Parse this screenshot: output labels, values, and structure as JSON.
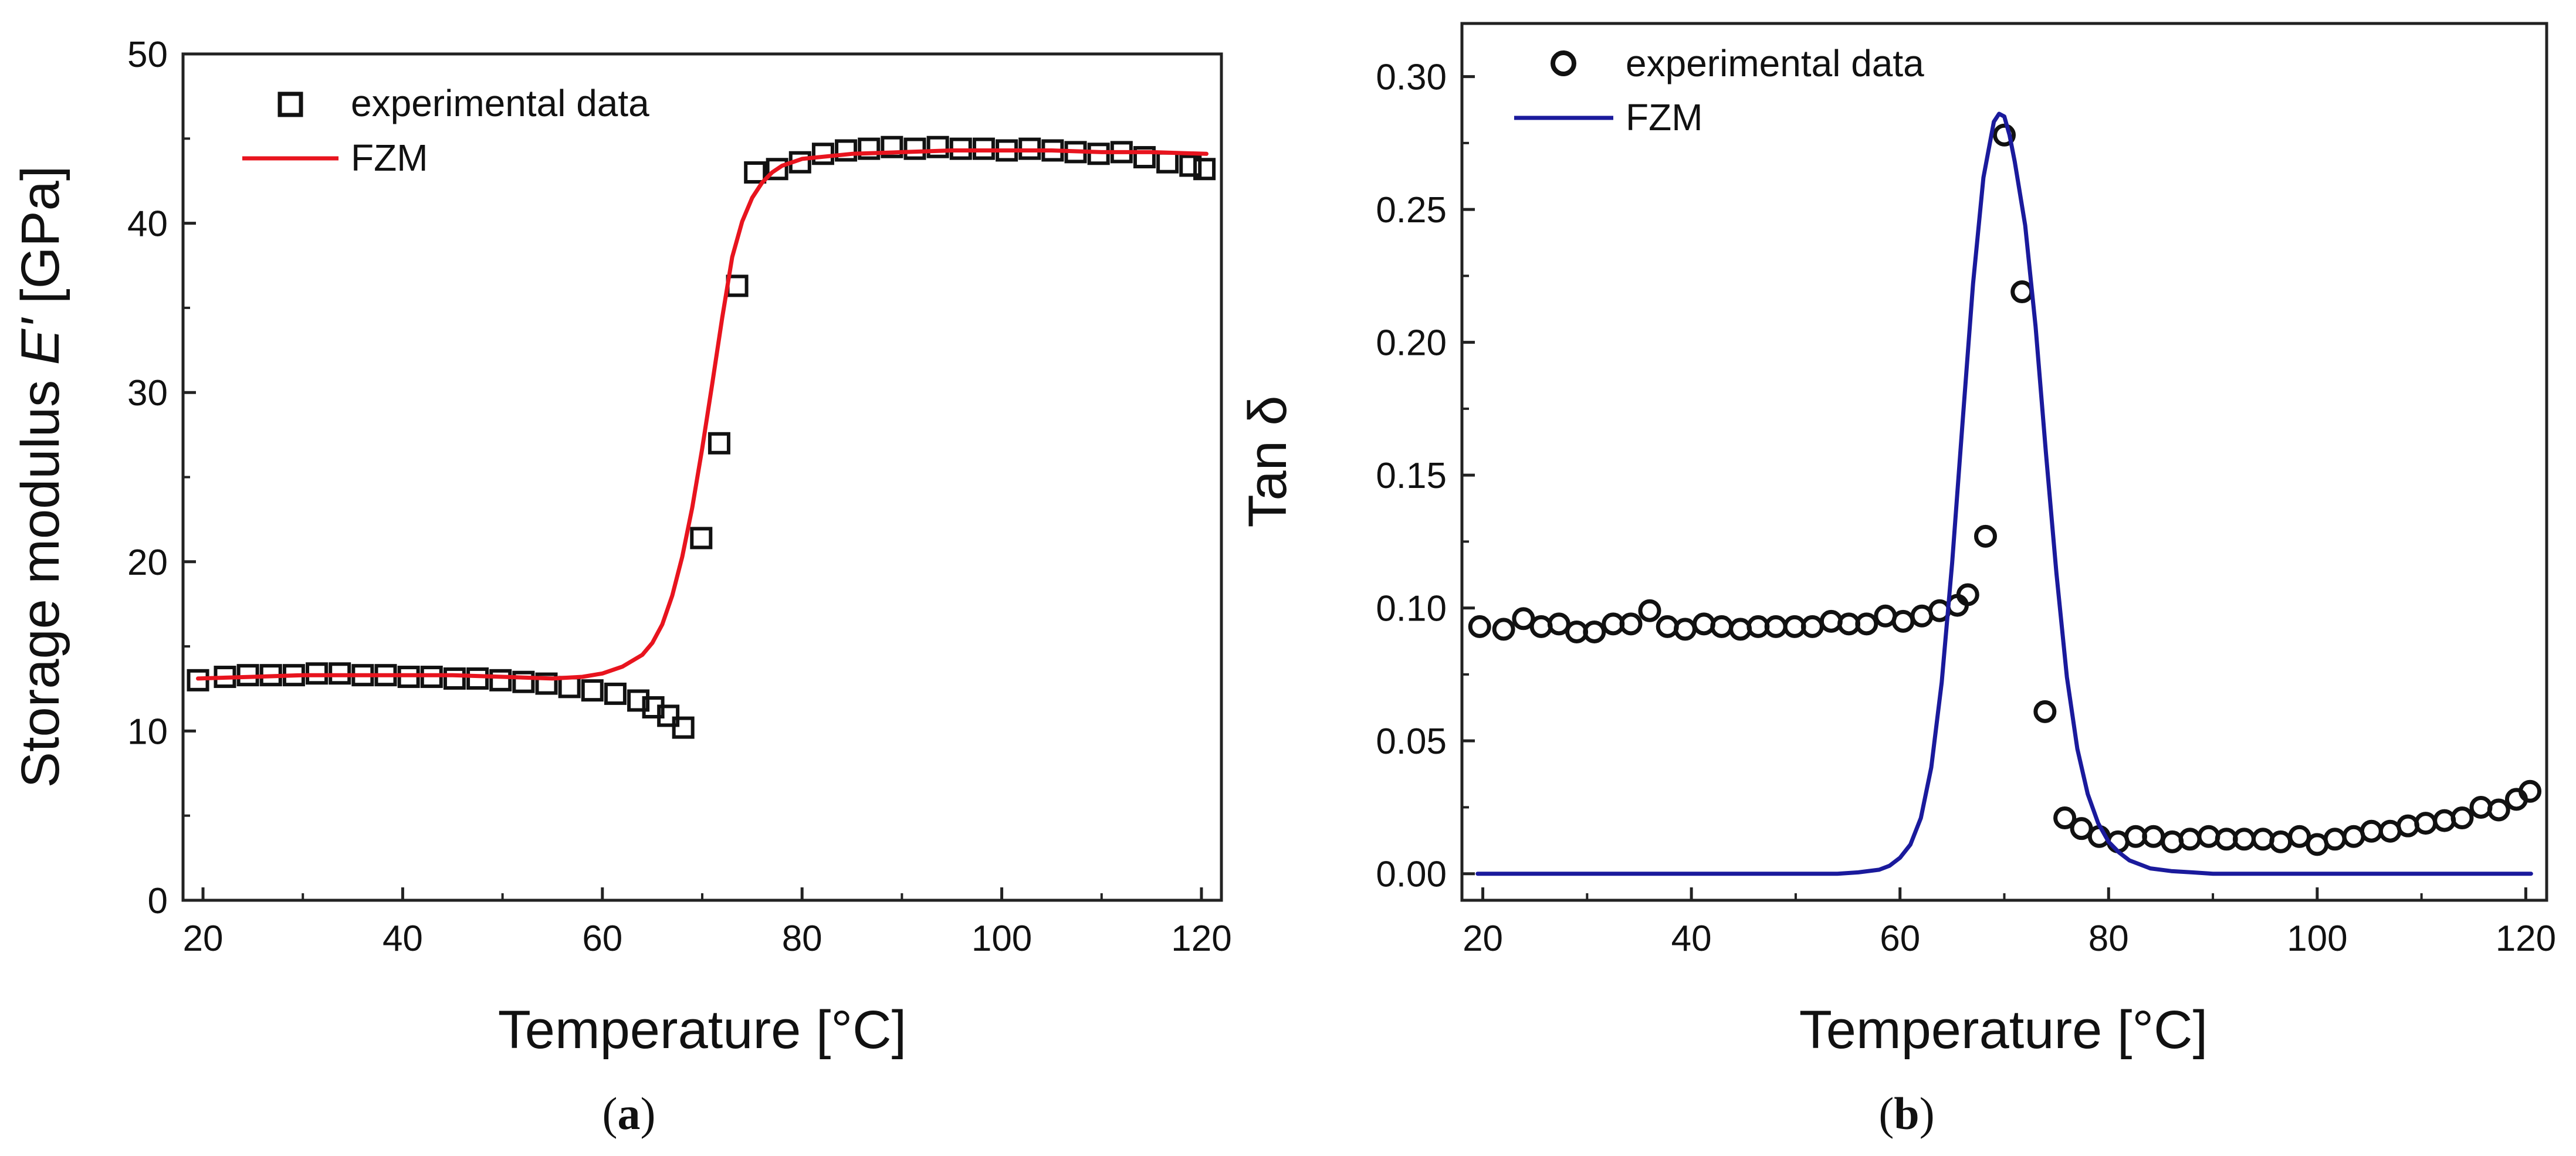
{
  "chart_data": [
    {
      "type": "line",
      "panel": "(a)",
      "panel_letter": "a",
      "xlabel": "Temperature [°C]",
      "ylabel_prefix": "Storage modulus ",
      "ylabel_var": "E'",
      "ylabel_suffix": " [GPa]",
      "xlim": [
        18,
        122
      ],
      "ylim": [
        0,
        50
      ],
      "xticks": [
        20,
        40,
        60,
        80,
        100,
        120
      ],
      "yticks": [
        0,
        10,
        20,
        30,
        40,
        50
      ],
      "grid": false,
      "legend_position": "top-left",
      "series": [
        {
          "name": "experimental data",
          "marker": "square",
          "color": "#111111",
          "x": [
            19.5,
            22.2,
            24.5,
            26.8,
            29.1,
            31.4,
            33.7,
            36.0,
            38.3,
            40.6,
            42.9,
            45.2,
            47.5,
            49.8,
            52.1,
            54.4,
            56.7,
            59.0,
            61.3,
            63.6,
            65.1,
            66.6,
            68.1,
            69.9,
            71.7,
            73.5,
            75.3,
            77.5,
            79.8,
            82.1,
            84.4,
            86.7,
            89.0,
            91.3,
            93.6,
            95.9,
            98.2,
            100.5,
            102.8,
            105.1,
            107.4,
            109.7,
            112.0,
            114.3,
            116.6,
            118.9,
            120.3
          ],
          "y": [
            13.0,
            13.2,
            13.3,
            13.3,
            13.3,
            13.4,
            13.4,
            13.3,
            13.3,
            13.2,
            13.2,
            13.1,
            13.1,
            13.0,
            12.9,
            12.8,
            12.6,
            12.4,
            12.2,
            11.8,
            11.4,
            10.9,
            10.2,
            21.4,
            27.0,
            36.3,
            43.0,
            43.2,
            43.6,
            44.1,
            44.3,
            44.4,
            44.5,
            44.4,
            44.5,
            44.4,
            44.4,
            44.3,
            44.4,
            44.3,
            44.2,
            44.1,
            44.2,
            43.9,
            43.6,
            43.4,
            43.2
          ]
        },
        {
          "name": "FZM",
          "marker": "line",
          "color": "#e8141e",
          "x": [
            19.5,
            25,
            30,
            35,
            40,
            45,
            50,
            55,
            58,
            60,
            62,
            64,
            65,
            66,
            67,
            68,
            69,
            70,
            71,
            72,
            73,
            74,
            75,
            76,
            77,
            78,
            80,
            85,
            90,
            95,
            100,
            105,
            110,
            115,
            120.5
          ],
          "y": [
            13.1,
            13.2,
            13.3,
            13.3,
            13.3,
            13.3,
            13.2,
            13.1,
            13.2,
            13.4,
            13.8,
            14.5,
            15.2,
            16.3,
            18.0,
            20.3,
            23.2,
            26.7,
            30.5,
            34.4,
            38.0,
            40.1,
            41.5,
            42.4,
            43.0,
            43.4,
            43.8,
            44.1,
            44.2,
            44.3,
            44.3,
            44.3,
            44.2,
            44.2,
            44.1
          ]
        }
      ]
    },
    {
      "type": "line",
      "panel": "(b)",
      "panel_letter": "b",
      "xlabel": "Temperature [°C]",
      "ylabel": "Tan δ",
      "xlim": [
        18,
        122
      ],
      "ylim": [
        -0.01,
        0.32
      ],
      "xticks": [
        20,
        40,
        60,
        80,
        100,
        120
      ],
      "yticks": [
        0.0,
        0.05,
        0.1,
        0.15,
        0.2,
        0.25,
        0.3
      ],
      "yticklabels": [
        "0.00",
        "0.05",
        "0.10",
        "0.15",
        "0.20",
        "0.25",
        "0.30"
      ],
      "grid": false,
      "legend_position": "top-left",
      "series": [
        {
          "name": "experimental data",
          "marker": "circle",
          "color": "#111111",
          "x": [
            19.7,
            22.0,
            23.9,
            25.6,
            27.3,
            29.0,
            30.7,
            32.5,
            34.2,
            36.0,
            37.7,
            39.4,
            41.2,
            42.9,
            44.7,
            46.4,
            48.1,
            49.9,
            51.6,
            53.4,
            55.1,
            56.8,
            58.6,
            60.3,
            62.1,
            63.8,
            65.5,
            66.5,
            68.2,
            70.0,
            71.7,
            73.9,
            75.8,
            77.4,
            79.1,
            80.9,
            82.6,
            84.3,
            86.1,
            87.8,
            89.6,
            91.3,
            93.0,
            94.8,
            96.5,
            98.3,
            100.0,
            101.7,
            103.5,
            105.2,
            107.0,
            108.7,
            110.4,
            112.2,
            113.9,
            115.7,
            117.4,
            119.1,
            120.4
          ],
          "y": [
            0.093,
            0.092,
            0.096,
            0.093,
            0.094,
            0.091,
            0.091,
            0.094,
            0.094,
            0.099,
            0.093,
            0.092,
            0.094,
            0.093,
            0.092,
            0.093,
            0.093,
            0.093,
            0.093,
            0.095,
            0.094,
            0.094,
            0.097,
            0.095,
            0.097,
            0.099,
            0.101,
            0.105,
            0.127,
            0.278,
            0.219,
            0.061,
            0.021,
            0.017,
            0.014,
            0.012,
            0.014,
            0.014,
            0.012,
            0.013,
            0.014,
            0.013,
            0.013,
            0.013,
            0.012,
            0.014,
            0.011,
            0.013,
            0.014,
            0.016,
            0.016,
            0.018,
            0.019,
            0.02,
            0.021,
            0.025,
            0.024,
            0.028,
            0.031
          ]
        },
        {
          "name": "FZM",
          "marker": "line",
          "color": "#1a1a9c",
          "x": [
            19.5,
            30,
            40,
            50,
            54,
            56,
            58,
            59,
            60,
            61,
            62,
            63,
            64,
            65,
            66,
            67,
            68,
            69,
            69.5,
            70,
            70.5,
            71,
            72,
            73,
            74,
            75,
            76,
            77,
            78,
            79,
            80,
            81,
            82,
            84,
            86,
            88,
            90,
            95,
            100,
            110,
            120.5
          ],
          "y": [
            0.0,
            0.0,
            0.0,
            0.0,
            0.0,
            0.0005,
            0.0015,
            0.003,
            0.006,
            0.011,
            0.021,
            0.04,
            0.072,
            0.117,
            0.17,
            0.222,
            0.262,
            0.283,
            0.286,
            0.285,
            0.278,
            0.268,
            0.244,
            0.206,
            0.158,
            0.113,
            0.074,
            0.047,
            0.03,
            0.019,
            0.012,
            0.008,
            0.005,
            0.002,
            0.001,
            0.0005,
            0.0,
            0.0,
            0.0,
            0.0,
            0.0
          ]
        }
      ]
    }
  ]
}
